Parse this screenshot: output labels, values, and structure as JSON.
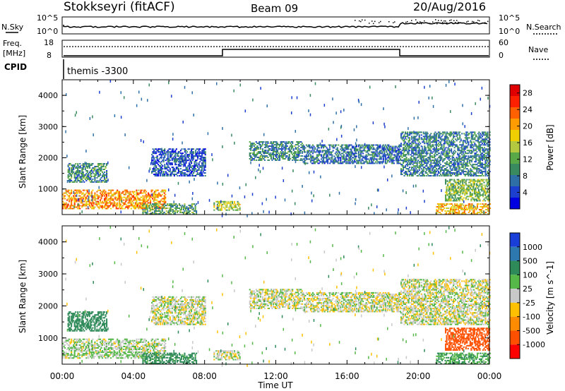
{
  "header": {
    "station": "Stokkseyri (fitACF)",
    "beam": "Beam 09",
    "date": "20/Aug/2016"
  },
  "noise_panel": {
    "left_label": "N.Sky",
    "left_ticks": [
      "10^5",
      "10^0"
    ],
    "right_label": "N.Search",
    "right_ticks": [
      "10^5",
      "10^0"
    ]
  },
  "freq_panel": {
    "left_label_top": "Freq.",
    "left_label_bottom": "[MHz]",
    "left_ticks": [
      "18",
      "8"
    ],
    "right_label": "Nave",
    "right_ticks": [
      "60",
      "0"
    ]
  },
  "cpid": {
    "label": "CPID",
    "value": "themis -3300"
  },
  "time_axis": {
    "label": "Time UT",
    "ticks": [
      "00:00",
      "04:00",
      "08:00",
      "12:00",
      "16:00",
      "20:00",
      "00:00"
    ]
  },
  "range_axis": {
    "label": "Slant Range [km]",
    "ticks": [
      "1000",
      "2000",
      "3000",
      "4000"
    ]
  },
  "power_colorbar": {
    "label": "Power [dB]",
    "ticks": [
      "4",
      "8",
      "12",
      "16",
      "20",
      "24",
      "28"
    ],
    "colors": [
      "#0000e0",
      "#1c3fd0",
      "#2f6fa8",
      "#3a8a60",
      "#58a848",
      "#b4c840",
      "#f0d000",
      "#ff9c00",
      "#ff6000",
      "#ff2000",
      "#e00000"
    ]
  },
  "velocity_colorbar": {
    "label": "Velocity [m s^-1]",
    "ticks": [
      "1000",
      "500",
      "100",
      "25",
      "-25",
      "-100",
      "-500",
      "-1000"
    ],
    "colors": [
      "#1a3fd8",
      "#2e78b0",
      "#2e8a58",
      "#55b848",
      "#c8c8c8",
      "#ffc000",
      "#ff8c00",
      "#ff5000",
      "#ff0000"
    ]
  },
  "chart_data": {
    "type": "heatmap",
    "x_range": [
      "00:00",
      "24:00"
    ],
    "ylim": [
      180,
      4500
    ],
    "regions": [
      {
        "t0": 0.0,
        "t1": 5.8,
        "r0": 350,
        "r1": 950,
        "power": 22,
        "velocity": 20
      },
      {
        "t0": 0.3,
        "t1": 2.5,
        "r0": 1200,
        "r1": 1800,
        "power": 10,
        "velocity": 200
      },
      {
        "t0": 4.5,
        "t1": 7.5,
        "r0": 180,
        "r1": 500,
        "power": 12,
        "velocity": 150
      },
      {
        "t0": 5.0,
        "t1": 8.0,
        "r0": 1400,
        "r1": 2300,
        "power": 6,
        "velocity": 0
      },
      {
        "t0": 8.5,
        "t1": 10.0,
        "r0": 300,
        "r1": 600,
        "power": 16,
        "velocity": 0
      },
      {
        "t0": 10.5,
        "t1": 13.5,
        "r0": 1900,
        "r1": 2500,
        "power": 10,
        "velocity": 0
      },
      {
        "t0": 13.5,
        "t1": 19.0,
        "r0": 1800,
        "r1": 2400,
        "power": 8,
        "velocity": 0
      },
      {
        "t0": 19.0,
        "t1": 24.0,
        "r0": 1400,
        "r1": 2800,
        "power": 9,
        "velocity": 0
      },
      {
        "t0": 21.5,
        "t1": 24.0,
        "r0": 600,
        "r1": 1300,
        "power": 14,
        "velocity": -600
      },
      {
        "t0": 21.0,
        "t1": 24.0,
        "r0": 180,
        "r1": 500,
        "power": 20,
        "velocity": 100
      }
    ]
  }
}
